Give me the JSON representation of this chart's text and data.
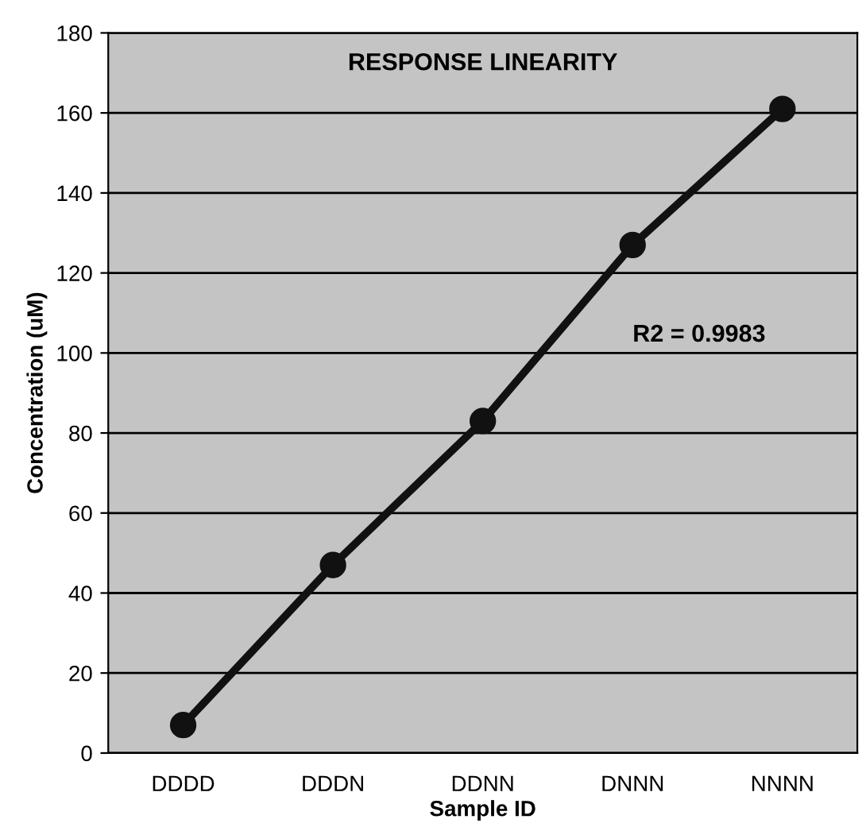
{
  "chart_data": {
    "type": "line",
    "title": "RESPONSE LINEARITY",
    "xlabel": "Sample ID",
    "ylabel": "Concentration (uM)",
    "categories": [
      "DDDD",
      "DDDN",
      "DDNN",
      "DNNN",
      "NNNN"
    ],
    "series": [
      {
        "color": "#111111",
        "values": [
          7,
          47,
          83,
          127,
          161
        ]
      }
    ],
    "ylim": [
      0,
      180
    ],
    "yticks": [
      0,
      20,
      40,
      60,
      80,
      100,
      120,
      140,
      160,
      180
    ],
    "grid": "y",
    "marker": "circle",
    "line_style": "solid",
    "annotations": [
      "R2 = 0.9983"
    ]
  }
}
